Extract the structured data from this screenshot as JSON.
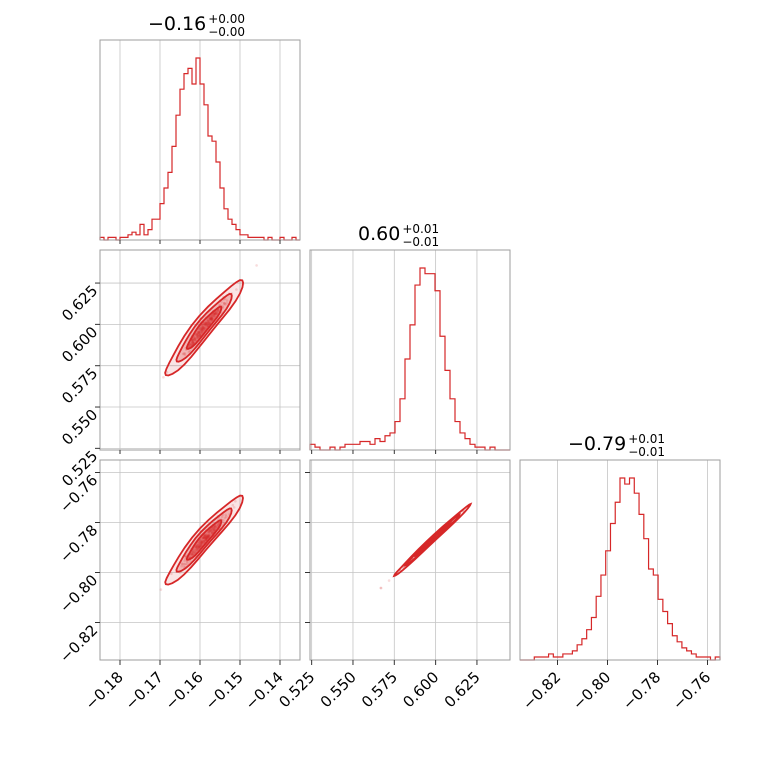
{
  "chart_data": {
    "type": "corner",
    "color": "#d62728",
    "parameters": [
      {
        "title_value": "−0.16",
        "title_plus": "+0.00",
        "title_minus": "−0.00",
        "median": -0.159,
        "range": [
          -0.185,
          -0.135
        ],
        "ticks": [
          -0.18,
          -0.17,
          -0.16,
          -0.15,
          -0.14
        ],
        "tick_labels": [
          "−0.18",
          "−0.17",
          "−0.16",
          "−0.15",
          "−0.14"
        ]
      },
      {
        "title_value": "0.60",
        "title_plus": "+0.01",
        "title_minus": "−0.01",
        "median": 0.598,
        "range": [
          0.524,
          0.645
        ],
        "ticks": [
          0.525,
          0.55,
          0.575,
          0.6,
          0.625
        ],
        "tick_labels": [
          "0.525",
          "0.550",
          "0.575",
          "0.600",
          "0.625"
        ]
      },
      {
        "title_value": "−0.79",
        "title_plus": "+0.01",
        "title_minus": "−0.01",
        "median": -0.787,
        "range": [
          -0.835,
          -0.755
        ],
        "ticks": [
          -0.82,
          -0.8,
          -0.78,
          -0.76
        ],
        "tick_labels": [
          "−0.82",
          "−0.80",
          "−0.78",
          "−0.76"
        ]
      }
    ],
    "histograms": [
      {
        "bins": [
          -0.185,
          -0.135
        ],
        "counts": [
          1,
          0,
          1,
          1,
          0,
          1,
          1,
          2,
          3,
          2,
          6,
          2,
          4,
          8,
          8,
          14,
          20,
          26,
          36,
          48,
          58,
          64,
          66,
          60,
          70,
          60,
          52,
          40,
          38,
          30,
          20,
          12,
          8,
          6,
          4,
          2,
          2,
          1,
          1,
          1,
          1,
          0,
          1,
          0,
          0,
          1,
          0,
          0,
          1,
          0
        ]
      },
      {
        "bins": [
          0.524,
          0.645
        ],
        "counts": [
          2,
          1,
          0,
          0,
          1,
          0,
          1,
          2,
          2,
          2,
          3,
          3,
          2,
          4,
          3,
          5,
          6,
          10,
          18,
          32,
          44,
          58,
          64,
          62,
          62,
          56,
          40,
          28,
          18,
          10,
          6,
          4,
          2,
          1,
          1,
          0,
          1,
          0,
          0,
          0
        ]
      },
      {
        "bins": [
          -0.835,
          -0.755
        ],
        "counts": [
          0,
          0,
          0,
          1,
          1,
          1,
          2,
          1,
          1,
          2,
          2,
          3,
          5,
          7,
          10,
          14,
          21,
          28,
          36,
          45,
          52,
          60,
          58,
          60,
          55,
          48,
          40,
          30,
          28,
          20,
          16,
          12,
          8,
          6,
          4,
          3,
          2,
          1,
          1,
          1,
          0,
          1
        ]
      }
    ],
    "scatter_2d": [
      {
        "x_param": 0,
        "y_param": 1,
        "relation": "y = 0.598 + 3.0*(x + 0.159)",
        "contour_center": [
          -0.159,
          0.598
        ]
      },
      {
        "x_param": 0,
        "y_param": 2,
        "relation": "y = -0.787 + 1.85*(x + 0.159)",
        "contour_center": [
          -0.159,
          -0.787
        ]
      },
      {
        "x_param": 1,
        "y_param": 2,
        "relation": "y = -0.787 + 0.62*(x - 0.598)",
        "contour_center": [
          0.598,
          -0.787
        ]
      }
    ],
    "grid": true
  }
}
